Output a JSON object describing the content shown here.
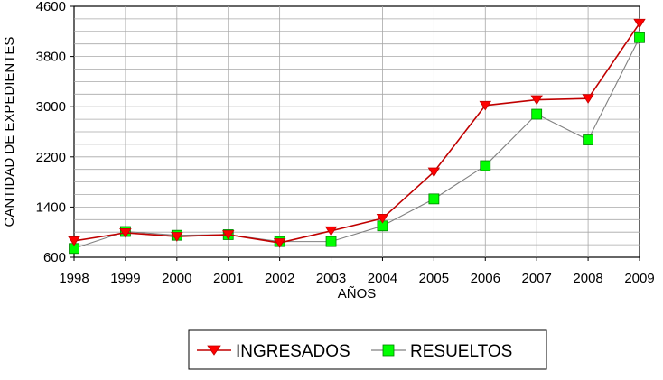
{
  "chart_data": {
    "type": "line",
    "title": "",
    "xlabel": "AÑOS",
    "ylabel": "CANTIDAD DE EXPEDIENTES",
    "categories": [
      "1998",
      "1999",
      "2000",
      "2001",
      "2002",
      "2003",
      "2004",
      "2005",
      "2006",
      "2007",
      "2008",
      "2009"
    ],
    "y_ticks": [
      "600",
      "1400",
      "2200",
      "3000",
      "3800",
      "4600"
    ],
    "ylim": [
      600,
      4600
    ],
    "grid": true,
    "legend_position": "bottom",
    "series": [
      {
        "name": "INGRESADOS",
        "color": "#c00000",
        "marker_color": "#ff0000",
        "marker": "triangle-down",
        "values": [
          860,
          990,
          930,
          960,
          830,
          1020,
          1220,
          1960,
          3020,
          3110,
          3130,
          4330
        ]
      },
      {
        "name": "RESUELTOS",
        "color": "#808080",
        "marker_color": "#00ff00",
        "marker": "square",
        "values": [
          740,
          1010,
          950,
          960,
          850,
          850,
          1100,
          1530,
          2060,
          2880,
          2470,
          4100
        ]
      }
    ]
  }
}
